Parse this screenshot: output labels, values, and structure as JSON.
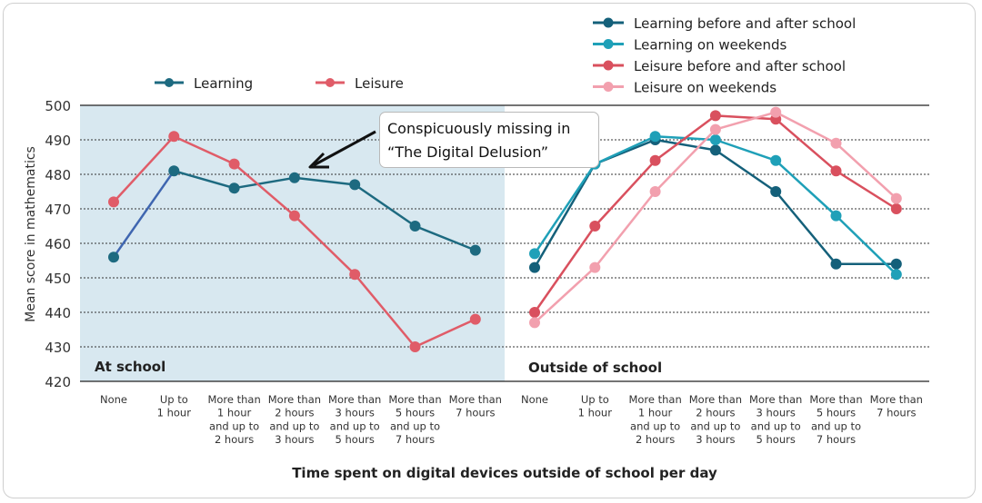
{
  "chart_data": {
    "type": "line",
    "xlabel": "Time spent on digital devices outside of school per day",
    "ylabel": "Mean score in mathematics",
    "ylim": [
      420,
      500
    ],
    "yticks": [
      420,
      430,
      440,
      450,
      460,
      470,
      480,
      490,
      500
    ],
    "categories": [
      [
        "None"
      ],
      [
        "Up to",
        "1 hour"
      ],
      [
        "More than",
        "1 hour",
        "and up to",
        "2 hours"
      ],
      [
        "More than",
        "2 hours",
        "and up to",
        "3 hours"
      ],
      [
        "More than",
        "3 hours",
        "and up to",
        "5 hours"
      ],
      [
        "More than",
        "5 hours",
        "and up to",
        "7 hours"
      ],
      [
        "More than",
        "7 hours"
      ]
    ],
    "grid": true,
    "panels": [
      {
        "label": "At school",
        "shaded": true,
        "legend": [
          {
            "name": "Learning",
            "color": "#1d6a80"
          },
          {
            "name": "Leisure",
            "color": "#e05c68"
          }
        ],
        "series": [
          {
            "name": "Learning",
            "color": "#1d6a80",
            "first_segment_color": "#3f66b0",
            "values": [
              456,
              481,
              476,
              479,
              477,
              465,
              458
            ]
          },
          {
            "name": "Leisure",
            "color": "#e05c68",
            "values": [
              472,
              491,
              483,
              468,
              451,
              430,
              438
            ]
          }
        ]
      },
      {
        "label": "Outside of school",
        "shaded": false,
        "legend": [
          {
            "name": "Learning before and after school",
            "color": "#14607a"
          },
          {
            "name": "Learning on weekends",
            "color": "#1fa0b8"
          },
          {
            "name": "Leisure before and after school",
            "color": "#d9505e"
          },
          {
            "name": "Leisure on weekends",
            "color": "#f2a0ae"
          }
        ],
        "series": [
          {
            "name": "Learning before and after school",
            "color": "#14607a",
            "values": [
              453,
              483,
              490,
              487,
              475,
              454,
              454
            ]
          },
          {
            "name": "Learning on weekends",
            "color": "#1fa0b8",
            "values": [
              457,
              483,
              491,
              490,
              484,
              468,
              451
            ]
          },
          {
            "name": "Leisure before and after school",
            "color": "#d9505e",
            "values": [
              440,
              465,
              484,
              497,
              496,
              481,
              470
            ]
          },
          {
            "name": "Leisure on weekends",
            "color": "#f2a0ae",
            "values": [
              437,
              453,
              475,
              493,
              498,
              489,
              473
            ]
          }
        ]
      }
    ]
  },
  "annotation": {
    "line1": "Conspicuously missing in",
    "line2": "“The Digital Delusion”"
  }
}
